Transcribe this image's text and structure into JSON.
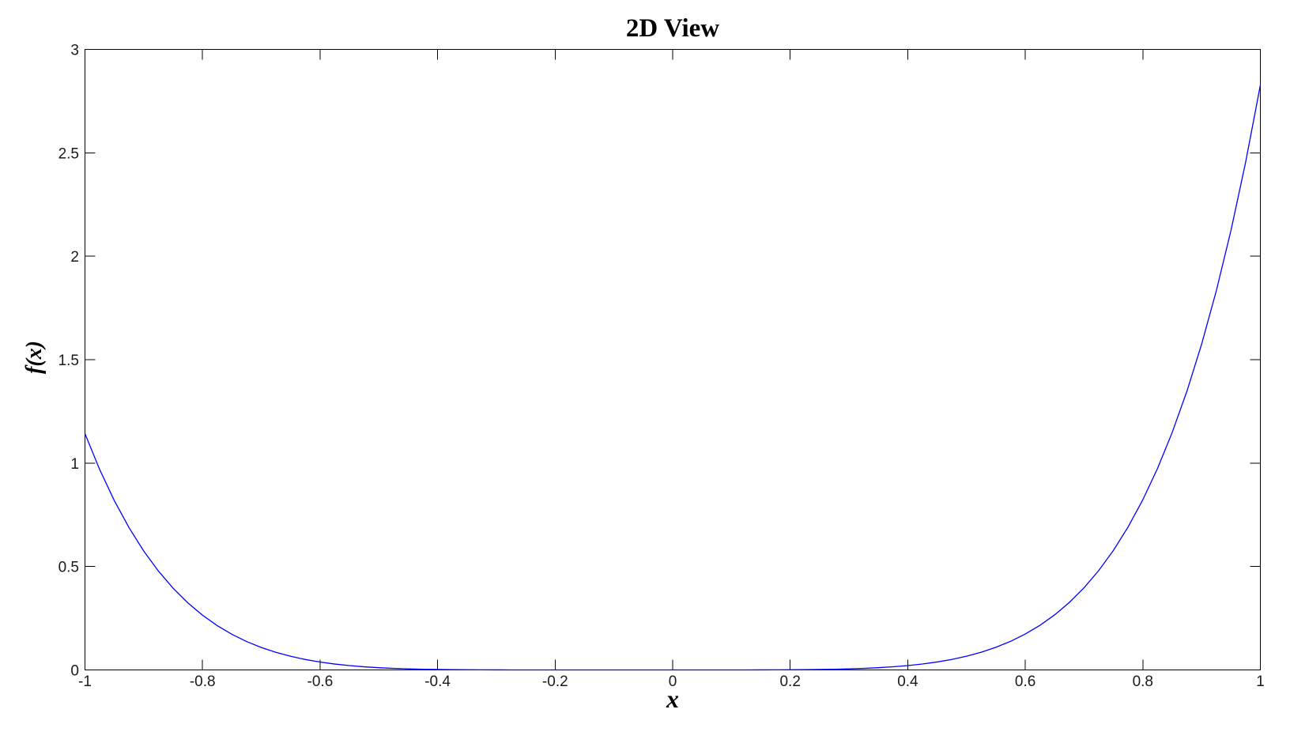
{
  "figure": {
    "background_color": "#ffffff",
    "axis_color": "#000000",
    "tick_label_color": "#1a1a1a"
  },
  "chart_data": {
    "type": "line",
    "title": "2D View",
    "xlabel": "x",
    "ylabel": "f(x)",
    "xlim": [
      -1,
      1
    ],
    "ylim": [
      0,
      3
    ],
    "grid": false,
    "legend": false,
    "box": true,
    "tick_direction": "in",
    "xticks": [
      -1,
      -0.8,
      -0.6,
      -0.4,
      -0.2,
      0,
      0.2,
      0.4,
      0.6,
      0.8,
      1
    ],
    "xtick_labels": [
      "-1",
      "-0.8",
      "-0.6",
      "-0.4",
      "-0.2",
      "0",
      "0.2",
      "0.4",
      "0.6",
      "0.8",
      "1"
    ],
    "yticks": [
      0,
      0.5,
      1,
      1.5,
      2,
      2.5,
      3
    ],
    "ytick_labels": [
      "0",
      "0.5",
      "1",
      "1.5",
      "2",
      "2.5",
      "3"
    ],
    "series": [
      {
        "name": "f(x)",
        "color": "#0000FF",
        "x": [
          -1,
          -0.975,
          -0.95,
          -0.925,
          -0.9,
          -0.875,
          -0.85,
          -0.825,
          -0.8,
          -0.775,
          -0.75,
          -0.725,
          -0.7,
          -0.675,
          -0.65,
          -0.625,
          -0.6,
          -0.575,
          -0.55,
          -0.525,
          -0.5,
          -0.475,
          -0.45,
          -0.425,
          -0.4,
          -0.375,
          -0.35,
          -0.325,
          -0.3,
          -0.275,
          -0.25,
          -0.225,
          -0.2,
          -0.175,
          -0.15,
          -0.125,
          -0.1,
          -0.075,
          -0.05,
          -0.025,
          0,
          0.025,
          0.05,
          0.075,
          0.1,
          0.125,
          0.15,
          0.175,
          0.2,
          0.225,
          0.25,
          0.275,
          0.3,
          0.325,
          0.35,
          0.375,
          0.4,
          0.425,
          0.45,
          0.475,
          0.5,
          0.525,
          0.55,
          0.575,
          0.6,
          0.625,
          0.65,
          0.675,
          0.7,
          0.725,
          0.75,
          0.775,
          0.8,
          0.825,
          0.85,
          0.875,
          0.9,
          0.925,
          0.95,
          0.975,
          1
        ],
        "y": [
          1.1421,
          0.9689,
          0.8182,
          0.6875,
          0.5747,
          0.4778,
          0.3949,
          0.3243,
          0.2646,
          0.2143,
          0.1723,
          0.1374,
          0.1085,
          0.0849,
          0.0658,
          0.0504,
          0.0381,
          0.0284,
          0.0209,
          0.0151,
          0.0107,
          0.0074,
          0.0051,
          0.0033,
          0.0021,
          0.0013,
          0.0008,
          0.0004,
          0.0002,
          0.0001,
          0.0001,
          0,
          0,
          0,
          0,
          0,
          0,
          0,
          0,
          0,
          0,
          0,
          0,
          0,
          0.0001,
          0.0001,
          0.0002,
          0.0005,
          0.0008,
          0.0013,
          0.0022,
          0.0034,
          0.0051,
          0.0075,
          0.0108,
          0.0153,
          0.0211,
          0.0287,
          0.0385,
          0.0508,
          0.0663,
          0.0856,
          0.1094,
          0.1384,
          0.1735,
          0.2158,
          0.2663,
          0.3264,
          0.3973,
          0.4806,
          0.578,
          0.6914,
          0.8227,
          0.9741,
          1.1481,
          1.3471,
          1.5742,
          1.8324,
          2.1249,
          2.4553,
          2.8275
        ]
      }
    ]
  }
}
